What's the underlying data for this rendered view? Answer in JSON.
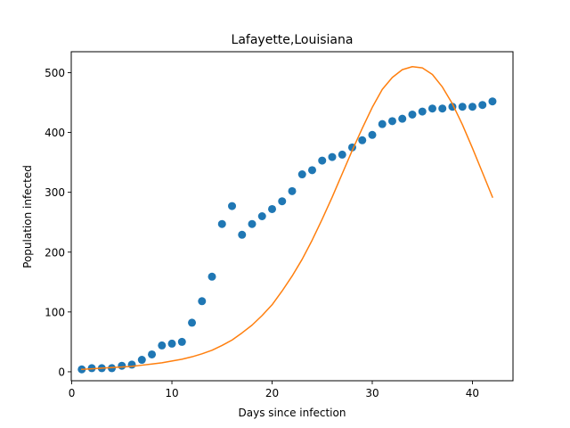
{
  "chart_data": {
    "type": "scatter",
    "title": "Lafayette,Louisiana",
    "xlabel": "Days since infection",
    "ylabel": "Population infected",
    "xlim": [
      -0.05,
      44.05
    ],
    "ylim": [
      -15,
      535
    ],
    "xticks": [
      0,
      10,
      20,
      30,
      40
    ],
    "yticks": [
      0,
      100,
      200,
      300,
      400,
      500
    ],
    "grid": false,
    "legend": "none",
    "series": [
      {
        "kind": "scatter",
        "color": "#1f77b4",
        "x": [
          1,
          2,
          3,
          4,
          5,
          6,
          7,
          8,
          9,
          10,
          11,
          12,
          13,
          14,
          15,
          16,
          17,
          18,
          19,
          20,
          21,
          22,
          23,
          24,
          25,
          26,
          27,
          28,
          29,
          30,
          31,
          32,
          33,
          34,
          35,
          36,
          37,
          38,
          39,
          40,
          41,
          42
        ],
        "y": [
          4,
          6,
          6,
          6,
          10,
          12,
          20,
          29,
          44,
          47,
          50,
          82,
          118,
          159,
          247,
          277,
          229,
          247,
          260,
          272,
          285,
          302,
          330,
          337,
          353,
          359,
          363,
          375,
          387,
          396,
          414,
          419,
          423,
          430,
          435,
          440,
          440,
          443,
          443,
          443,
          446,
          452
        ]
      },
      {
        "kind": "line",
        "color": "#ff7f0e",
        "x": [
          1,
          2,
          3,
          4,
          5,
          6,
          7,
          8,
          9,
          10,
          11,
          12,
          13,
          14,
          15,
          16,
          17,
          18,
          19,
          20,
          21,
          22,
          23,
          24,
          25,
          26,
          27,
          28,
          29,
          30,
          31,
          32,
          33,
          34,
          35,
          36,
          37,
          38,
          39,
          40,
          41,
          42
        ],
        "y": [
          4,
          5,
          6,
          7,
          8,
          9,
          11,
          13,
          15,
          18,
          21,
          25,
          30,
          36,
          44,
          53,
          65,
          78,
          94,
          112,
          135,
          160,
          188,
          220,
          255,
          292,
          331,
          370,
          407,
          442,
          472,
          492,
          505,
          510,
          508,
          497,
          476,
          448,
          413,
          374,
          333,
          292
        ]
      }
    ]
  }
}
